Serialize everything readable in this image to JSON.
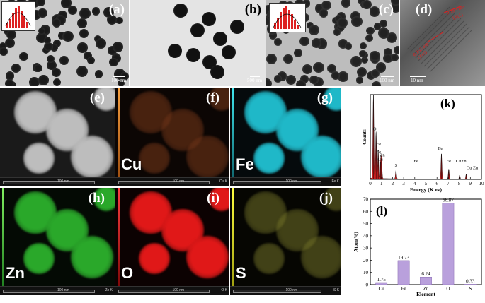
{
  "panels": {
    "a": {
      "label": "(a)",
      "scale": "100 nm"
    },
    "b": {
      "label": "(b)",
      "scale": "500 nm"
    },
    "c": {
      "label": "(c)",
      "scale": "100 nm"
    },
    "d": {
      "label": "(d)",
      "scale": "10 nm",
      "lattice1": "0.253 nm",
      "lattice2": "0.253 nm",
      "lattice3": "(311)",
      "lattice4": "(311)"
    },
    "e": {
      "label": "(e)",
      "footer": "100 nm"
    },
    "f": {
      "label": "(f)",
      "element": "Cu",
      "footer": "100 nm",
      "etag": "Cu K"
    },
    "g": {
      "label": "(g)",
      "element": "Fe",
      "footer": "100 nm",
      "etag": "Fe K"
    },
    "h": {
      "label": "(h)",
      "element": "Zn",
      "footer": "100 nm",
      "etag": "Zn K"
    },
    "i": {
      "label": "(i)",
      "element": "O",
      "footer": "100 nm",
      "etag": "O K"
    },
    "j": {
      "label": "(j)",
      "element": "S",
      "footer": "100 nm",
      "etag": "S K"
    },
    "k": {
      "label": "(k)"
    },
    "l": {
      "label": "(l)"
    }
  },
  "colors": {
    "cu_map": "#7a3a1a",
    "fe_map": "#1fb8c8",
    "zn_map": "#2aa82a",
    "o_map": "#e01818",
    "s_map": "#8a8a30",
    "eds_fill": "#cc2020",
    "bar_fill": "#b9a0dc"
  },
  "chart_data": [
    {
      "type": "area",
      "panel": "k",
      "xlabel": "Energy (K ev)",
      "ylabel": "Counts",
      "xlim": [
        0,
        10
      ],
      "xticks": [
        0,
        1,
        2,
        3,
        4,
        5,
        6,
        7,
        8,
        9,
        10
      ],
      "peaks": [
        {
          "x": 0.28,
          "y": 1.0
        },
        {
          "x": 0.52,
          "y": 0.55,
          "label": "O"
        },
        {
          "x": 0.71,
          "y": 0.34,
          "label": "Fe"
        },
        {
          "x": 0.93,
          "y": 0.2,
          "label": "Cu"
        },
        {
          "x": 1.01,
          "y": 0.22,
          "label": "Zn"
        },
        {
          "x": 2.31,
          "y": 0.1,
          "label": "S"
        },
        {
          "x": 6.4,
          "y": 0.3,
          "label": "Fe"
        },
        {
          "x": 7.06,
          "y": 0.12,
          "label": "Fe"
        },
        {
          "x": 8.04,
          "y": 0.05,
          "label": "Cu"
        },
        {
          "x": 8.63,
          "y": 0.06,
          "label": "Zn"
        }
      ],
      "peak_labels": [
        {
          "text": "O",
          "x": 0.25,
          "y": 0.58
        },
        {
          "text": "Fe",
          "x": 0.55,
          "y": 0.4
        },
        {
          "text": "Fe",
          "x": 0.55,
          "y": 0.31
        },
        {
          "text": "Zn",
          "x": 0.85,
          "y": 0.27
        },
        {
          "text": "Cu",
          "x": 0.65,
          "y": 0.22
        },
        {
          "text": "S",
          "x": 2.2,
          "y": 0.15
        },
        {
          "text": "Fe",
          "x": 3.9,
          "y": 0.2
        },
        {
          "text": "Fe",
          "x": 6.1,
          "y": 0.35
        },
        {
          "text": "Fe",
          "x": 6.85,
          "y": 0.2
        },
        {
          "text": "CuZn",
          "x": 7.7,
          "y": 0.2
        },
        {
          "text": "Cu Zn",
          "x": 8.65,
          "y": 0.12
        }
      ]
    },
    {
      "type": "bar",
      "panel": "l",
      "xlabel": "Element",
      "ylabel": "Atom(%)",
      "ylim": [
        0,
        70
      ],
      "yticks": [
        0,
        10,
        20,
        30,
        40,
        50,
        60,
        70
      ],
      "categories": [
        "Cu",
        "Fe",
        "Zn",
        "O",
        "S"
      ],
      "values": [
        1.75,
        19.73,
        6.24,
        66.87,
        0.33
      ],
      "value_labels": [
        "1.75",
        "19.73",
        "6.24",
        "66.87",
        "0.33"
      ]
    }
  ]
}
